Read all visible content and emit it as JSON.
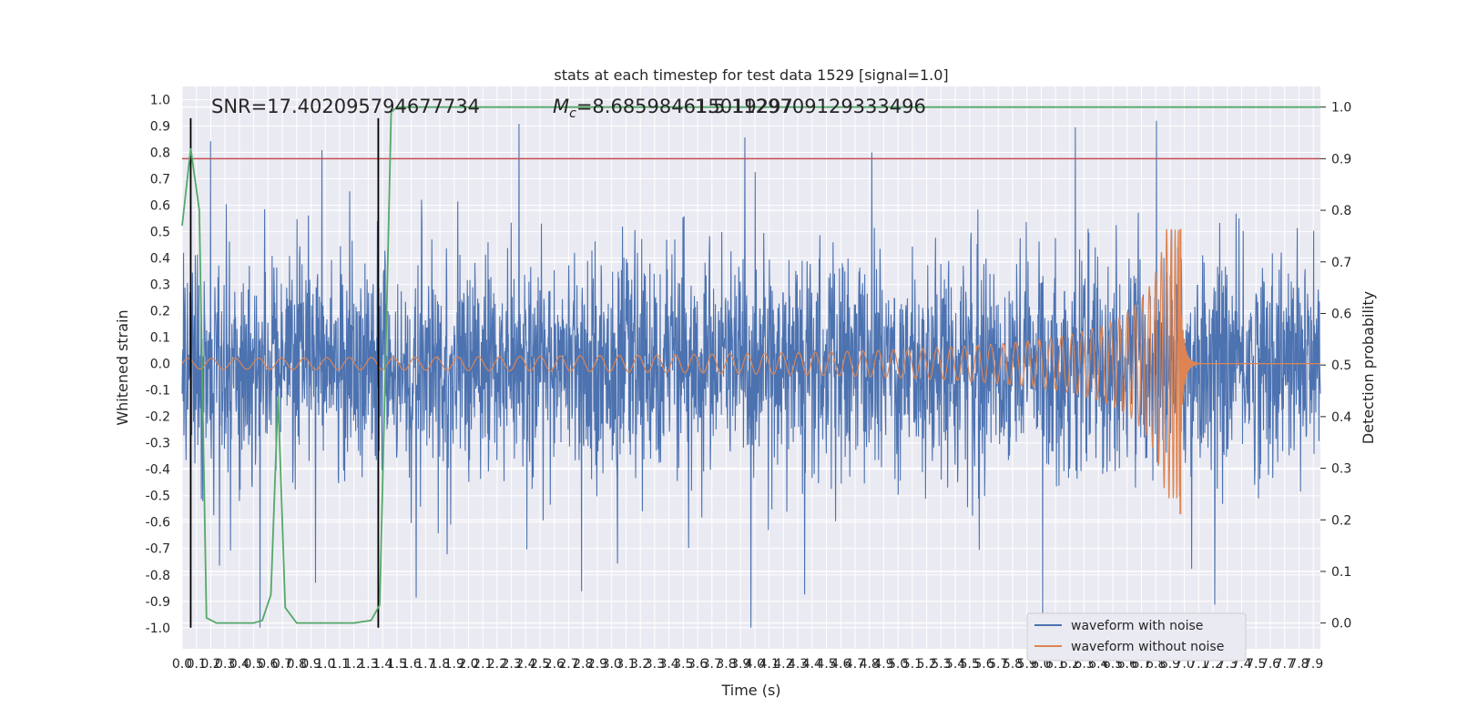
{
  "chart_data": {
    "type": "line",
    "title": "stats at each timestep for test data 1529 [signal=1.0]",
    "xlabel": "Time (s)",
    "ylabel": "Whitened strain",
    "y2label": "Detection probability",
    "xlim": [
      0.0,
      7.95
    ],
    "ylim": [
      -1.08,
      1.05
    ],
    "y2lim": [
      -0.05,
      1.04
    ],
    "x_ticks": [
      "0.0",
      "0.1",
      "0.2",
      "0.3",
      "0.4",
      "0.5",
      "0.6",
      "0.7",
      "0.8",
      "0.9",
      "1.0",
      "1.1",
      "1.2",
      "1.3",
      "1.4",
      "1.5",
      "1.6",
      "1.7",
      "1.8",
      "1.9",
      "2.0",
      "2.1",
      "2.2",
      "2.3",
      "2.4",
      "2.5",
      "2.6",
      "2.7",
      "2.8",
      "2.9",
      "3.0",
      "3.1",
      "3.2",
      "3.3",
      "3.4",
      "3.5",
      "3.6",
      "3.7",
      "3.8",
      "3.9",
      "4.0",
      "4.1",
      "4.2",
      "4.3",
      "4.4",
      "4.5",
      "4.6",
      "4.7",
      "4.8",
      "4.9",
      "5.0",
      "5.1",
      "5.2",
      "5.3",
      "5.4",
      "5.5",
      "5.6",
      "5.7",
      "5.8",
      "5.9",
      "6.0",
      "6.1",
      "6.2",
      "6.3",
      "6.4",
      "6.5",
      "6.6",
      "6.7",
      "6.8",
      "6.9",
      "7.0",
      "7.1",
      "7.2",
      "7.3",
      "7.4",
      "7.5",
      "7.6",
      "7.7",
      "7.8",
      "7.9"
    ],
    "y_ticks": [
      "-1.0",
      "-0.9",
      "-0.8",
      "-0.7",
      "-0.6",
      "-0.5",
      "-0.4",
      "-0.3",
      "-0.2",
      "-0.1",
      "0.0",
      "0.1",
      "0.2",
      "0.3",
      "0.4",
      "0.5",
      "0.6",
      "0.7",
      "0.8",
      "0.9",
      "1.0"
    ],
    "y2_ticks": [
      "0.0",
      "0.1",
      "0.2",
      "0.3",
      "0.4",
      "0.5",
      "0.6",
      "0.7",
      "0.8",
      "0.9",
      "1.0"
    ],
    "annotations": {
      "snr": "SNR=17.402095794677734",
      "mc_symbol": "M",
      "mc_sub": "c",
      "mc_value": "=8.685984615019297",
      "mc_overlap": "1.5 1129709129333496"
    },
    "legend": {
      "placement": "lower-right",
      "entries": [
        {
          "name": "waveform with noise",
          "color": "#4c72b0"
        },
        {
          "name": "waveform without noise",
          "color": "#dd8452"
        }
      ]
    },
    "series": [
      {
        "name": "waveform with noise",
        "color": "#4c72b0",
        "envelope": {
          "positive_typical": 0.35,
          "negative_typical": -0.4,
          "peak_max": 0.92,
          "peak_min": -1.0
        }
      },
      {
        "name": "waveform without noise",
        "color": "#dd8452",
        "chirp": {
          "start_time": 0.0,
          "merger_time": 6.98,
          "amplitude_start": 0.02,
          "amplitude_peak": 0.51,
          "amplitude_min": -0.57
        }
      },
      {
        "name": "detection probability",
        "color": "#55a868",
        "axis": "right",
        "x": [
          0.0,
          0.06,
          0.12,
          0.17,
          0.24,
          0.3,
          0.4,
          0.5,
          0.56,
          0.62,
          0.67,
          0.72,
          0.8,
          0.9,
          1.0,
          1.2,
          1.32,
          1.38,
          1.42,
          1.46,
          1.5,
          2.0,
          3.0,
          4.0,
          5.0,
          6.0,
          7.0,
          7.95
        ],
        "y": [
          0.77,
          0.92,
          0.8,
          0.01,
          0.0,
          0.0,
          0.0,
          0.0,
          0.005,
          0.055,
          0.44,
          0.03,
          0.0,
          0.0,
          0.0,
          0.0,
          0.005,
          0.035,
          0.5,
          0.99,
          1.0,
          1.0,
          1.0,
          1.0,
          1.0,
          1.0,
          1.0,
          1.0
        ]
      },
      {
        "name": "threshold",
        "color": "#c44e52",
        "axis": "right",
        "y": 0.9
      }
    ],
    "vertical_markers": {
      "color": "#000000",
      "x": [
        0.06,
        1.37
      ],
      "y_from": -1.0,
      "y_to": 0.93
    }
  }
}
